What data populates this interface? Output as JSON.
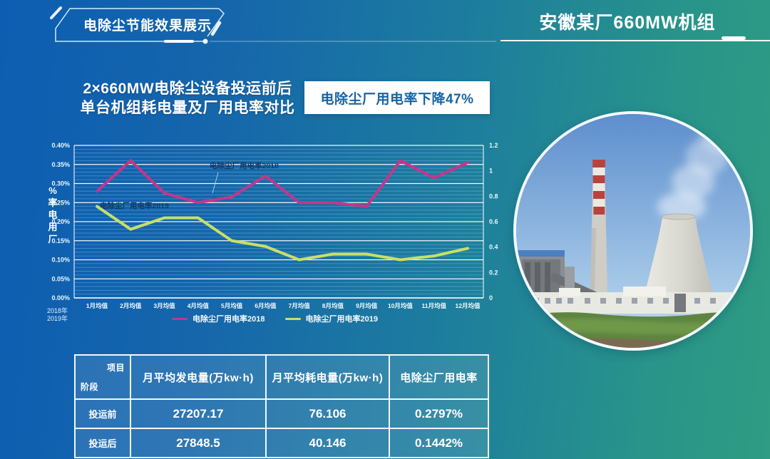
{
  "header": {
    "badge_label": "电除尘节能效果展示",
    "plant_title": "安徽某厂660MW机组"
  },
  "main": {
    "title_line1": "2×660MW电除尘设备投运前后",
    "title_line2": "单台机组耗电量及厂用电率对比",
    "highlight": "电除尘厂用电率下降47%"
  },
  "chart_data": {
    "type": "line",
    "categories": [
      "1月均值",
      "2月均值",
      "3月均值",
      "4月均值",
      "5月均值",
      "6月均值",
      "7月均值",
      "8月均值",
      "9月均值",
      "10月均值",
      "11月均值",
      "12月均值"
    ],
    "series": [
      {
        "name": "电除尘厂用电率2018",
        "color": "#c4368b",
        "values": [
          0.28,
          0.36,
          0.275,
          0.25,
          0.265,
          0.32,
          0.25,
          0.25,
          0.24,
          0.36,
          0.315,
          0.355
        ]
      },
      {
        "name": "电除尘厂用电率2019",
        "color": "#c9df67",
        "values": [
          0.24,
          0.18,
          0.21,
          0.21,
          0.15,
          0.135,
          0.1,
          0.115,
          0.115,
          0.1,
          0.11,
          0.13
        ]
      }
    ],
    "y_left": {
      "title_chars": [
        "%",
        "率",
        "电",
        "用",
        "厂"
      ],
      "min": 0,
      "max": 0.4,
      "major_step": 0.05,
      "minor_step": 0.01,
      "unit": "%"
    },
    "y_right": {
      "ticks": [
        "1.2",
        "1",
        "0.8",
        "0.6",
        "0.4",
        "0.2",
        "0"
      ]
    },
    "x_axis_years": [
      "2018年",
      "2019年"
    ],
    "grid": "on",
    "legend_position": "bottom",
    "annotations": [
      {
        "text": "电除尘厂用电率2018",
        "x": 236,
        "y": 44,
        "leader": [
          248,
          50,
          240,
          79
        ]
      },
      {
        "text": "电除尘厂用电率2019",
        "x": 82,
        "y": 100
      }
    ]
  },
  "table": {
    "corner": {
      "top_right": "项目",
      "bottom_left": "阶段"
    },
    "columns": [
      "月平均发电量(万kw·h)",
      "月平均耗电量(万kw·h)",
      "电除尘厂用电率"
    ],
    "rows": [
      {
        "label": "投运前",
        "values": [
          "27207.17",
          "76.106",
          "0.2797%"
        ]
      },
      {
        "label": "投运后",
        "values": [
          "27848.5",
          "40.146",
          "0.1442%"
        ]
      }
    ]
  },
  "colors": {
    "background_left": "#0d5db2",
    "background_right": "#2f9c83",
    "series_2018": "#c4368b",
    "series_2019": "#c9df67",
    "annotation_text": "#133a66",
    "highlight_text": "#1565a5",
    "grid_major": "rgba(255,255,255,0.95)",
    "grid_minor": "rgba(165,225,250,0.36)"
  }
}
